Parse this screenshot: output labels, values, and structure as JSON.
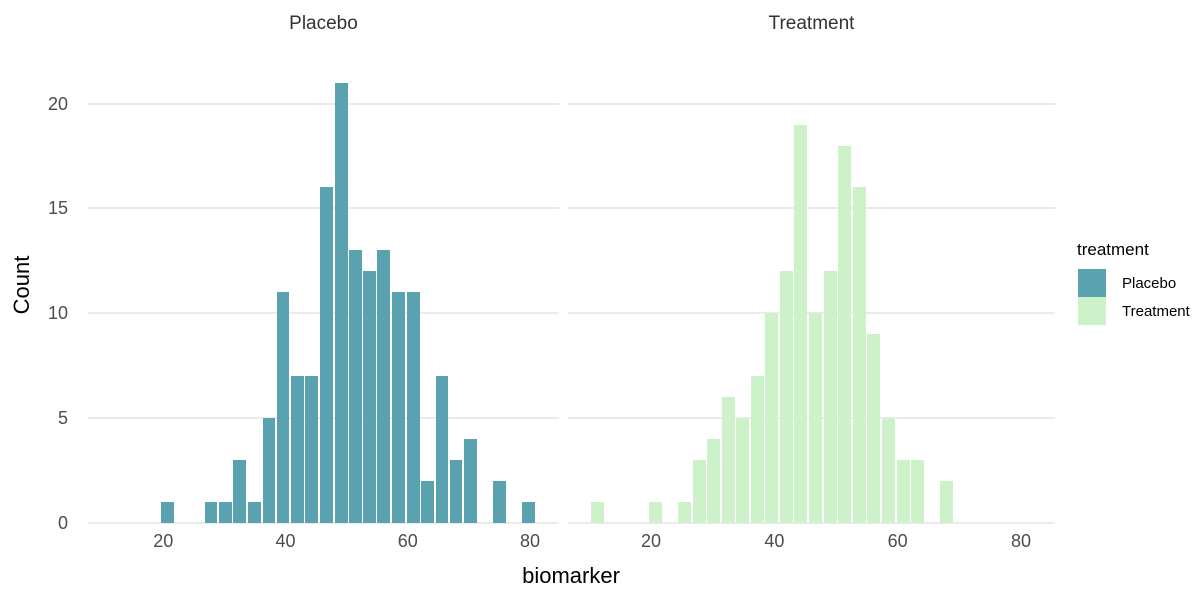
{
  "figure": {
    "background": "#ffffff"
  },
  "axes": {
    "x_title": "biomarker",
    "y_title": "Count"
  },
  "facets": [
    {
      "label": "Placebo"
    },
    {
      "label": "Treatment"
    }
  ],
  "legend": {
    "title": "treatment",
    "items": [
      {
        "label": "Placebo",
        "color": "#5ba2b0"
      },
      {
        "label": "Treatment",
        "color": "#cdf1c9"
      }
    ]
  },
  "chart_data": {
    "type": "bar",
    "subtype": "faceted-histogram",
    "title": "",
    "xlabel": "biomarker",
    "ylabel": "Count",
    "facet_titles": [
      "Placebo",
      "Treatment"
    ],
    "legend_title": "treatment",
    "legend_position": "right",
    "grid": "horizontal-major-only",
    "gridline_color": "#ebebeb",
    "xlim": [
      7.5,
      84.5
    ],
    "ylim": [
      0,
      21
    ],
    "x_ticks": [
      20,
      40,
      60,
      80
    ],
    "y_ticks": [
      0,
      5,
      10,
      15,
      20
    ],
    "bin_width": 2.36,
    "bin_centers": [
      11.3,
      13.7,
      16.0,
      18.4,
      20.7,
      23.1,
      25.5,
      27.8,
      30.2,
      32.5,
      34.9,
      37.3,
      39.6,
      42.0,
      44.3,
      46.7,
      49.1,
      51.4,
      53.8,
      56.1,
      58.5,
      60.9,
      63.2,
      65.6,
      67.9,
      70.3,
      72.7,
      75.0,
      77.4,
      79.7
    ],
    "series": [
      {
        "name": "Placebo",
        "color": "#5ba2b0",
        "counts": [
          0,
          0,
          0,
          0,
          1,
          0,
          0,
          1,
          1,
          3,
          1,
          5,
          11,
          7,
          7,
          16,
          21,
          13,
          12,
          13,
          11,
          11,
          2,
          7,
          3,
          4,
          0,
          2,
          0,
          1
        ]
      },
      {
        "name": "Treatment",
        "color": "#cdf1c9",
        "counts": [
          1,
          0,
          0,
          0,
          1,
          0,
          1,
          3,
          4,
          6,
          5,
          7,
          10,
          12,
          19,
          10,
          12,
          18,
          16,
          9,
          5,
          3,
          3,
          0,
          2,
          0,
          0,
          0,
          0,
          0
        ]
      }
    ]
  }
}
